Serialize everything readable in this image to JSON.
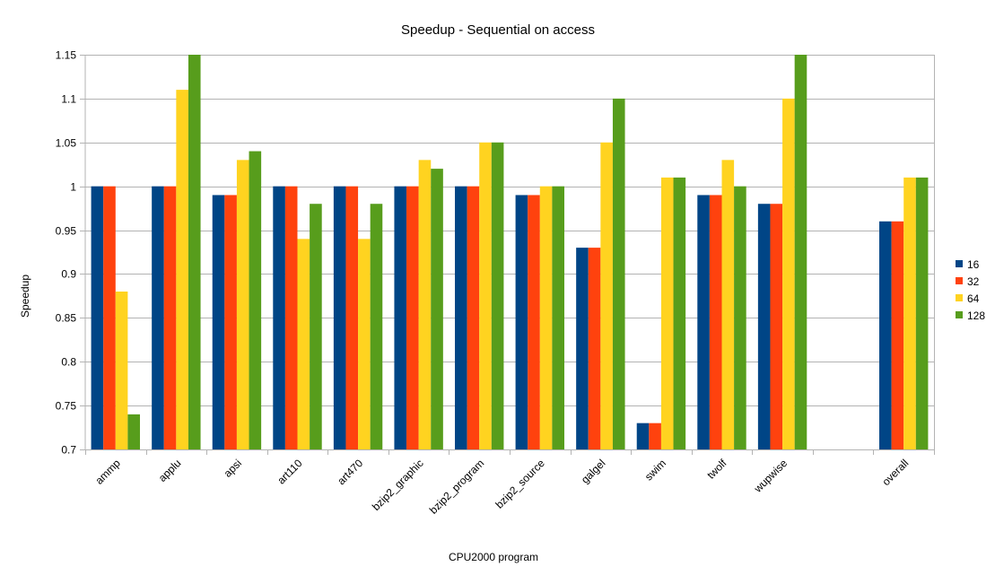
{
  "chart_data": {
    "type": "bar",
    "title": "Speedup - Sequential on access",
    "xlabel": "CPU2000 program",
    "ylabel": "Speedup",
    "ylim": [
      0.7,
      1.15
    ],
    "yticks": [
      0.7,
      0.75,
      0.8,
      0.85,
      0.9,
      0.95,
      1,
      1.05,
      1.1,
      1.15
    ],
    "ytick_labels": [
      "0.7",
      "0.75",
      "0.8",
      "0.85",
      "0.9",
      "0.95",
      "1",
      "1.05",
      "1.1",
      "1.15"
    ],
    "grid": true,
    "legend_position": "right",
    "categories": [
      "ammp",
      "applu",
      "apsi",
      "art110",
      "art470",
      "bzip2_graphic",
      "bzip2_program",
      "bzip2_source",
      "galgel",
      "swim",
      "twolf",
      "wupwise",
      "",
      "overall"
    ],
    "series": [
      {
        "name": "16",
        "color": "#004586",
        "values": [
          1.0,
          1.0,
          0.99,
          1.0,
          1.0,
          1.0,
          1.0,
          0.99,
          0.93,
          0.73,
          0.99,
          0.98,
          null,
          0.96
        ]
      },
      {
        "name": "32",
        "color": "#ff420e",
        "values": [
          1.0,
          1.0,
          0.99,
          1.0,
          1.0,
          1.0,
          1.0,
          0.99,
          0.93,
          0.73,
          0.99,
          0.98,
          null,
          0.96
        ]
      },
      {
        "name": "64",
        "color": "#ffd320",
        "values": [
          0.88,
          1.11,
          1.03,
          0.94,
          0.94,
          1.03,
          1.05,
          1.0,
          1.05,
          1.01,
          1.03,
          1.1,
          null,
          1.01
        ]
      },
      {
        "name": "128",
        "color": "#579d1c",
        "values": [
          0.74,
          1.15,
          1.04,
          0.98,
          0.98,
          1.02,
          1.05,
          1.0,
          1.1,
          1.01,
          1.0,
          1.15,
          null,
          1.01
        ]
      }
    ]
  }
}
